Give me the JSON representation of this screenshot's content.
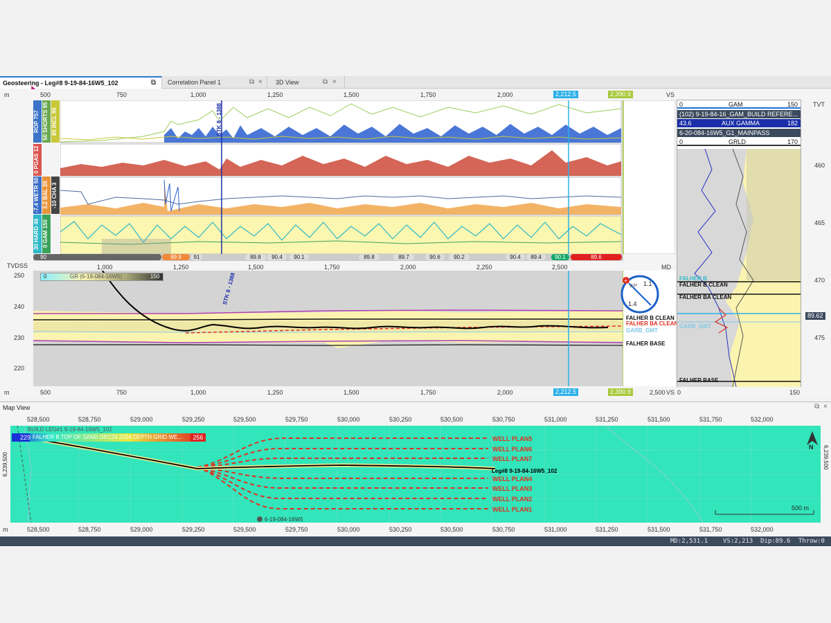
{
  "tabs": [
    {
      "label": "Geosteering - Leg#8 9-19-84-16W5_102",
      "active": true
    },
    {
      "label": "Correlation Panel 1",
      "active": false
    },
    {
      "label": "3D View",
      "active": false
    }
  ],
  "section": {
    "top_axis_unit": "m",
    "top_axis_ticks": [
      "500",
      "750",
      "1,000",
      "1,250",
      "1,500",
      "1,750",
      "2,000"
    ],
    "vs_label": "VS",
    "cursor_value": "2,212.5",
    "cursor_value_2": "2,390.9",
    "bottom_axis_ticks": [
      "500",
      "750",
      "1,000",
      "1,250",
      "1,500",
      "1,750",
      "2,000"
    ],
    "bottom_extra_tick": "2,500"
  },
  "tracks": {
    "track1_labels": [
      "ROP 757",
      "50 SHORTS 95",
      "85 INCL 95"
    ],
    "track1_label_colors": [
      "#3a73c8",
      "#6aa84f",
      "#c8c838"
    ],
    "track2_labels": [
      "0 PGAS 12"
    ],
    "track2_label_colors": [
      "#d9534f"
    ],
    "track3_labels": [
      "-7.4 WETR 50",
      "3.2 BAL 20",
      "-10 CHA 3"
    ],
    "track3_label_colors": [
      "#3a6ec8",
      "#e8953a",
      "#444"
    ],
    "track4_labels": [
      "30 HARD 46",
      "0 GAM 150"
    ],
    "track4_label_colors": [
      "#2fb8c8",
      "#3aa35a"
    ],
    "stk_label": "STK 8 - 1388"
  },
  "inclination_bar": {
    "left_value": "90",
    "segments": [
      "89.9",
      "91",
      "89.8",
      "90.4",
      "90.1",
      "89.8",
      "89.7",
      "90.6",
      "90.2",
      "90.4",
      "89.4",
      "90.1",
      "89.6"
    ]
  },
  "md_axis": {
    "label": "MD",
    "ticks": [
      "1,000",
      "1,250",
      "1,500",
      "1,750",
      "2,000",
      "2,250",
      "2,500"
    ]
  },
  "cross_section": {
    "y_axis_title": "TVDSS",
    "y_ticks": [
      "250",
      "240",
      "230",
      "220"
    ],
    "legend_min": "0",
    "legend_label": "GR (6-19-084-16W5)",
    "legend_max": "150",
    "stk_label": "STK 8 - 1388",
    "surface_labels": [
      "FALHER B CLEAN",
      "FALHER BA CLEAN",
      "GARB_GMT",
      "FALHER BASE"
    ]
  },
  "dip_widget": {
    "top_value": "1.1",
    "bottom_value": "1.4",
    "center_label": "WP"
  },
  "offset_log": {
    "curves": [
      {
        "min": "0",
        "name": "GAM",
        "max": "150",
        "color": "#1f6fd6"
      },
      {
        "min": "",
        "name": "(102) 9-19-84-16_GAM_BUILD REFERE...",
        "max": "",
        "color": "#3c4a5e"
      },
      {
        "min": "43.6",
        "name": "AUX GAMMA",
        "max": "182",
        "color": "#1a2ea8"
      },
      {
        "min": "",
        "name": "6-20-084-16W5_G1_MAINPASS",
        "max": "",
        "color": "#3c4a5e"
      },
      {
        "min": "0",
        "name": "GRLD",
        "max": "170",
        "color": "#333"
      }
    ],
    "tvt_label": "TVT",
    "tvt_ticks": [
      "460",
      "465",
      "470",
      "475"
    ],
    "tops": [
      "FALHER B",
      "FALHER B CLEAN",
      "FALHER BA CLEAN",
      "GARB_GMT",
      "FALHER BASE"
    ],
    "cursor_value": "89.62",
    "bottom_axis": [
      "0",
      "150"
    ]
  },
  "map_view": {
    "title": "Map View",
    "x_ticks": [
      "528,500",
      "528,750",
      "529,000",
      "529,250",
      "529,500",
      "529,750",
      "530,000",
      "530,250",
      "530,500",
      "530,750",
      "531,000",
      "531,250",
      "531,500",
      "531,750",
      "532,000"
    ],
    "y_tick": "6,239,500",
    "unit": "m",
    "legend_min": "229",
    "legend_label": "FALHER B TOP OF SAND DEC24 2024 DEPTH GRID WE...",
    "legend_max": "256",
    "well_plans": [
      "WELL PLAN5",
      "WELL PLAN6",
      "WELL PLAN7",
      "WELL PLAN4",
      "WELL PLAN3",
      "WELL PLAN2",
      "WELL PLAN1"
    ],
    "well_label": "Leg#8 9-19-84-16W5_102",
    "offset_well_label": "6-19-084-16W5",
    "top_well_label": "BUILD LEG#1 9-19-84-16W5_102",
    "scale_label": "500 m",
    "north_label": "N"
  },
  "status": {
    "md": "MD:2,531.1",
    "vs": "VS:2,213",
    "dip": "Dip:89.6",
    "throw": "Throw:0"
  }
}
